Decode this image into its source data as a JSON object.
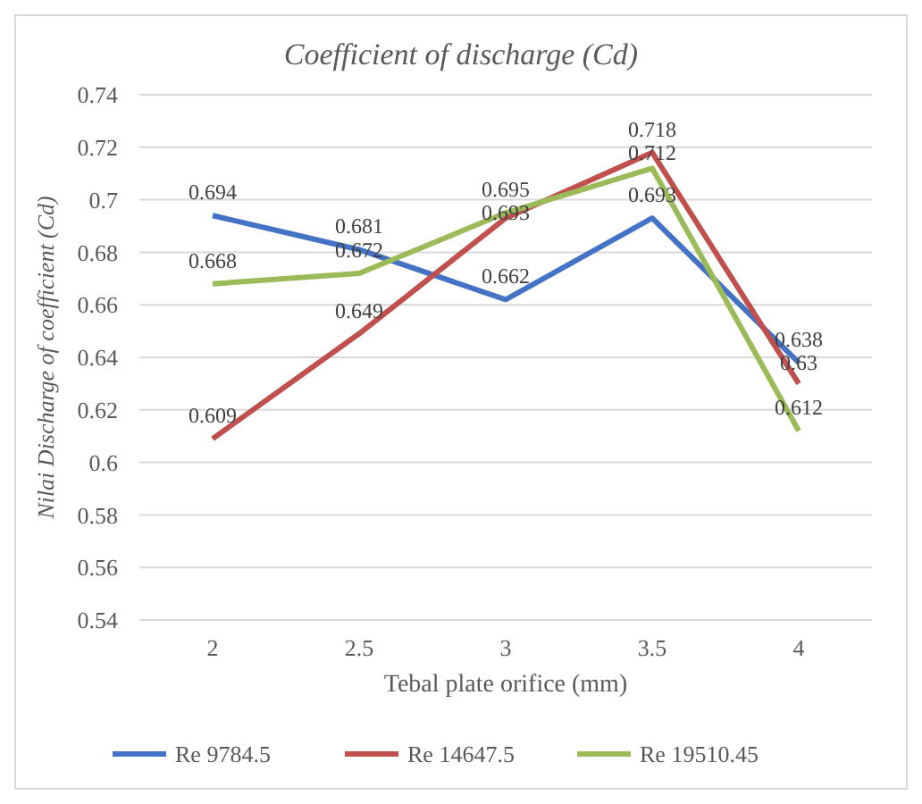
{
  "chart_data": {
    "type": "line",
    "title": "Coefficient of discharge (Cd)",
    "xlabel": "Tebal plate orifice (mm)",
    "ylabel": "Nilai Discharge of coefficient (Cd)",
    "categories": [
      "2",
      "2.5",
      "3",
      "3.5",
      "4"
    ],
    "series": [
      {
        "name": "Re 9784.5",
        "color": "#4472c4",
        "values": [
          0.694,
          0.681,
          0.662,
          0.693,
          0.638
        ]
      },
      {
        "name": "Re 14647.5",
        "color": "#c0504d",
        "values": [
          0.609,
          0.649,
          0.693,
          0.718,
          0.63
        ]
      },
      {
        "name": "Re 19510.45",
        "color": "#9bbb59",
        "values": [
          0.668,
          0.672,
          0.695,
          0.712,
          0.612
        ]
      }
    ],
    "ylim": [
      0.54,
      0.74
    ],
    "yticks": [
      0.54,
      0.56,
      0.58,
      0.6,
      0.62,
      0.64,
      0.66,
      0.68,
      0.7,
      0.72,
      0.74
    ],
    "grid": "y",
    "legend": "bottom",
    "data_labels": true,
    "marker": "none",
    "line_style": "solid"
  }
}
